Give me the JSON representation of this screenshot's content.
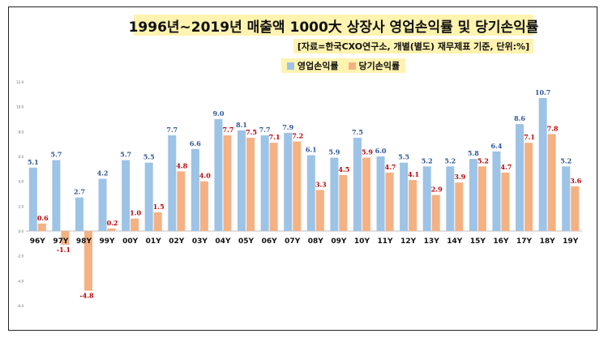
{
  "title": "1996년~2019년 매출액 1000大 상장사 영업손익률 및 당기손익률",
  "subtitle": "[자료=한국CXO연구소, 개별(별도) 재무제표 기준, 단위:%]",
  "colors": {
    "operating": "#9dc3e6",
    "net": "#f4b183",
    "operating_label": "#2e5597",
    "net_label": "#c00000",
    "axis_text": "#111111"
  },
  "chart_data": {
    "type": "bar",
    "title": "1996년~2019년 매출액 1000大 상장사 영업손익률 및 당기손익률",
    "xlabel": "",
    "ylabel": "",
    "ylim": [
      -6,
      12
    ],
    "ytick_labels": [
      "12.0",
      "10.0",
      "8.0",
      "6.0",
      "4.0",
      "2.0",
      "0.0",
      "-2.0",
      "-4.0",
      "-6.0"
    ],
    "grid": false,
    "legend_position": "top",
    "categories": [
      "96Y",
      "97Y",
      "98Y",
      "99Y",
      "00Y",
      "01Y",
      "02Y",
      "03Y",
      "04Y",
      "05Y",
      "06Y",
      "07Y",
      "08Y",
      "09Y",
      "10Y",
      "11Y",
      "12Y",
      "13Y",
      "14Y",
      "15Y",
      "16Y",
      "17Y",
      "18Y",
      "19Y"
    ],
    "series": [
      {
        "name": "영업손익률",
        "values": [
          5.1,
          5.7,
          2.7,
          4.2,
          5.7,
          5.5,
          7.7,
          6.6,
          9.0,
          8.1,
          7.7,
          7.9,
          6.1,
          5.9,
          7.5,
          6.0,
          5.5,
          5.2,
          5.2,
          5.8,
          6.4,
          8.6,
          10.7,
          5.2
        ]
      },
      {
        "name": "당기손익률",
        "values": [
          0.6,
          -1.1,
          -4.8,
          0.2,
          1.0,
          1.5,
          4.8,
          4.0,
          7.7,
          7.5,
          7.1,
          7.2,
          3.3,
          4.5,
          5.9,
          4.7,
          4.1,
          2.9,
          3.9,
          5.2,
          4.7,
          7.1,
          7.8,
          3.6
        ]
      }
    ]
  }
}
